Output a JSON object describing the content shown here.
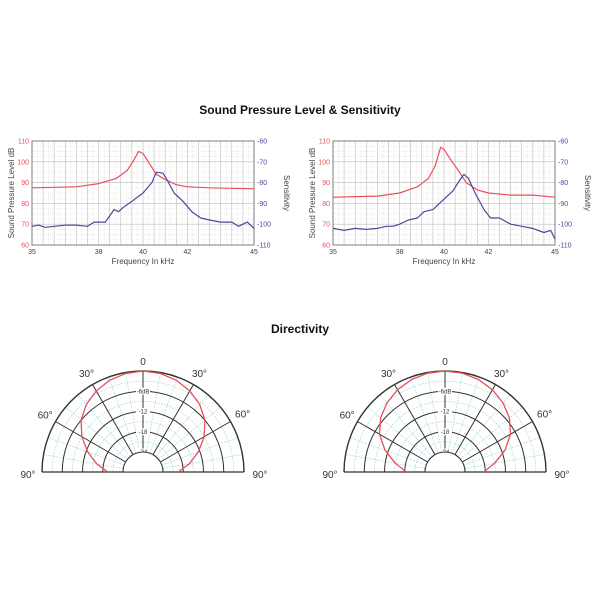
{
  "chart_data": {
    "titles": {
      "spl": "Sound Pressure Level & Sensitivity",
      "directivity": "Directivity"
    },
    "colors": {
      "spl": "#e8505b",
      "sensitivity": "#4a4a9a",
      "grid_cyan": "#9fd6dc",
      "polar_lines": "#333333"
    },
    "line_charts": [
      {
        "type": "line",
        "xlabel": "Frequency In kHz",
        "ylabel": "Sound Pressure Level dB",
        "y2label": "Sensitivity",
        "xlim": [
          35,
          45
        ],
        "ylim": [
          60,
          110
        ],
        "y2lim": [
          -110,
          -60
        ],
        "xticks": [
          "35",
          "38",
          "40",
          "42",
          "45"
        ],
        "yticks": [
          "60",
          "70",
          "80",
          "90",
          "100",
          "110"
        ],
        "y2ticks": [
          "-110",
          "-100",
          "-90",
          "-80",
          "-70",
          "-60"
        ],
        "series": [
          {
            "name": "Sound Pressure Level",
            "axis": "left",
            "x": [
              35,
              37,
              38,
              38.8,
              39.3,
              39.6,
              39.8,
              40,
              40.3,
              40.6,
              41,
              41.5,
              42,
              43,
              45
            ],
            "y": [
              87.5,
              88,
              89.5,
              92,
              96,
              101,
              105,
              104,
              99,
              94,
              91.5,
              89,
              88,
              87.5,
              87
            ]
          },
          {
            "name": "Sensitivity",
            "axis": "right",
            "x": [
              35,
              35.3,
              35.6,
              36,
              36.5,
              37,
              37.5,
              37.8,
              38.3,
              38.7,
              38.9,
              39.1,
              39.5,
              40,
              40.4,
              40.6,
              40.9,
              41.1,
              41.4,
              41.8,
              42.2,
              42.6,
              43,
              43.5,
              44,
              44.3,
              44.7,
              45
            ],
            "y": [
              -101,
              -100.5,
              -101.5,
              -101,
              -100.5,
              -100.5,
              -101,
              -99,
              -99,
              -93,
              -94,
              -92,
              -89,
              -85,
              -80,
              -75,
              -75.5,
              -79,
              -85,
              -89,
              -94,
              -97,
              -98,
              -99,
              -99,
              -101,
              -99,
              -102
            ]
          }
        ]
      },
      {
        "type": "line",
        "xlabel": "Frequency In kHz",
        "ylabel": "Sound Pressure Level dB",
        "y2label": "Sensitivity",
        "xlim": [
          35,
          45
        ],
        "ylim": [
          60,
          110
        ],
        "y2lim": [
          -110,
          -60
        ],
        "xticks": [
          "35",
          "38",
          "40",
          "42",
          "45"
        ],
        "yticks": [
          "60",
          "70",
          "80",
          "90",
          "100",
          "110"
        ],
        "y2ticks": [
          "-110",
          "-100",
          "-90",
          "-80",
          "-70",
          "-60"
        ],
        "series": [
          {
            "name": "Sound Pressure Level",
            "axis": "left",
            "x": [
              35,
              37,
              38,
              38.8,
              39.3,
              39.6,
              39.85,
              40,
              40.3,
              40.7,
              41,
              41.5,
              42,
              43,
              44,
              45
            ],
            "y": [
              83,
              83.5,
              85,
              88,
              92,
              98,
              107,
              106,
              101,
              95,
              90,
              86.5,
              85,
              84,
              84,
              83
            ]
          },
          {
            "name": "Sensitivity",
            "axis": "right",
            "x": [
              35,
              35.5,
              36,
              36.5,
              37,
              37.4,
              37.7,
              38,
              38.4,
              38.8,
              39.1,
              39.5,
              40,
              40.4,
              40.7,
              40.9,
              41.1,
              41.4,
              41.8,
              42.1,
              42.5,
              43,
              43.5,
              44,
              44.5,
              44.8,
              45
            ],
            "y": [
              -102,
              -103,
              -102,
              -102.5,
              -102,
              -101,
              -101,
              -100,
              -98,
              -97,
              -94,
              -93,
              -88,
              -84,
              -79,
              -76,
              -78,
              -85,
              -93,
              -97,
              -97,
              -100,
              -101,
              -102,
              -104,
              -103,
              -107
            ]
          }
        ]
      }
    ],
    "polar_charts": [
      {
        "type": "polar",
        "angle_labels": {
          "center": "0",
          "left30": "30°",
          "right30": "30°",
          "left60": "60°",
          "right60": "60°",
          "left90": "90°",
          "right90": "90°"
        },
        "ring_labels": [
          "-6dB",
          "-12",
          "-18",
          "-24"
        ],
        "rlim_db": [
          -24,
          0
        ],
        "angles_deg": [
          0,
          10,
          20,
          30,
          40,
          50,
          60,
          70,
          80,
          90
        ],
        "level_db": [
          0,
          -0.3,
          -1,
          -2.2,
          -3.8,
          -6,
          -9,
          -12.5,
          -16,
          -19.5
        ]
      },
      {
        "type": "polar",
        "angle_labels": {
          "center": "0",
          "left30": "30°",
          "right30": "30°",
          "left60": "60°",
          "right60": "60°",
          "left90": "90°",
          "right90": "90°"
        },
        "ring_labels": [
          "-6dB",
          "-12",
          "-18",
          "-24"
        ],
        "rlim_db": [
          -24,
          0
        ],
        "angles_deg": [
          0,
          10,
          20,
          30,
          40,
          50,
          60,
          70,
          80,
          90
        ],
        "level_db": [
          0,
          -0.2,
          -0.8,
          -1.8,
          -3.2,
          -5,
          -7.5,
          -11,
          -15,
          -18.5
        ]
      }
    ]
  }
}
